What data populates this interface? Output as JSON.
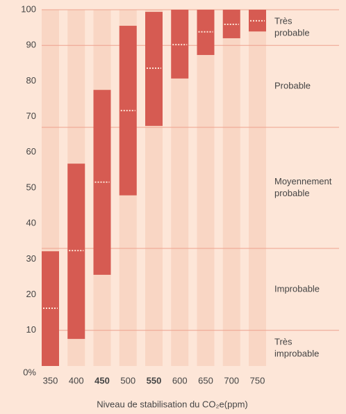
{
  "chart_data": {
    "type": "floating-bar",
    "x_label": "Niveau de stabilisation du CO₂e(ppm)",
    "categories": [
      "350",
      "400",
      "450",
      "500",
      "550",
      "600",
      "650",
      "700",
      "750"
    ],
    "emphasized": [
      false,
      false,
      true,
      false,
      true,
      false,
      false,
      false,
      false
    ],
    "low": [
      0,
      7.6,
      25.6,
      47.9,
      67.4,
      80.7,
      87.3,
      92,
      93.9
    ],
    "high": [
      32.2,
      56.8,
      77.5,
      95.5,
      99.4,
      100,
      100,
      100,
      100
    ],
    "median": [
      16.2,
      32.4,
      51.6,
      71.7,
      83.6,
      90.2,
      93.8,
      95.9,
      96.9
    ],
    "color": "#d65b52",
    "median_color": "#fde6d8",
    "stripe_color": "#f9d6c4",
    "line_color": "#eda18e",
    "ylim": [
      0,
      100
    ],
    "yticks": [
      {
        "value": 0,
        "label": "0%"
      },
      10,
      20,
      30,
      40,
      50,
      60,
      70,
      80,
      90,
      100
    ],
    "bands": [
      {
        "label": [
          "Très",
          "improbable"
        ],
        "from": 0,
        "to": 10
      },
      {
        "label": [
          "Improbable"
        ],
        "from": 10,
        "to": 33
      },
      {
        "label": [
          "Moyennement",
          "probable"
        ],
        "from": 33,
        "to": 67
      },
      {
        "label": [
          "Probable"
        ],
        "from": 67,
        "to": 90
      },
      {
        "label": [
          "Très",
          "probable"
        ],
        "from": 90,
        "to": 100
      }
    ]
  }
}
